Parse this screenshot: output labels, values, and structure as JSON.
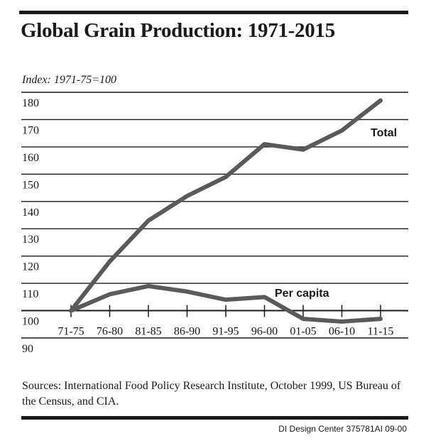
{
  "chart_data": {
    "type": "line",
    "title": "Global Grain Production: 1971-2015",
    "subtitle": "Index: 1971-75=100",
    "xlabel": "",
    "ylabel": "Index: 1971-75=100",
    "categories": [
      "71-75",
      "76-80",
      "81-85",
      "86-90",
      "91-95",
      "96-00",
      "01-05",
      "06-10",
      "11-15"
    ],
    "y_ticks": [
      180,
      170,
      160,
      150,
      140,
      130,
      120,
      110,
      100,
      90
    ],
    "ylim": [
      90,
      180
    ],
    "grid": true,
    "series": [
      {
        "name": "Total",
        "label": "Total",
        "color": "#5a5a5a",
        "values": [
          100,
          118,
          133,
          142,
          149,
          161,
          159,
          166,
          177
        ]
      },
      {
        "name": "Per capita",
        "label": "Per capita",
        "color": "#5a5a5a",
        "values": [
          100,
          106,
          109,
          107,
          104,
          105,
          97,
          96,
          97
        ]
      }
    ]
  },
  "footer": {
    "sources": "Sources: International Food Policy Research Institute, October 1999, US Bureau of the Census, and CIA.",
    "credit": "DI Design Center  375781AI 09-00"
  }
}
